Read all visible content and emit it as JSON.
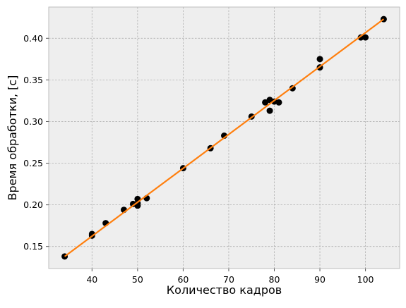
{
  "chart_data": {
    "type": "scatter",
    "title": "",
    "xlabel": "Количество кадров",
    "ylabel": "Время обработки, [с]",
    "xlim": [
      30.5,
      107.5
    ],
    "ylim": [
      0.1235,
      0.4375
    ],
    "xticks": [
      40,
      50,
      60,
      70,
      80,
      90,
      100
    ],
    "yticks": [
      0.15,
      0.2,
      0.25,
      0.3,
      0.35,
      0.4
    ],
    "grid": true,
    "legend": "none",
    "series": [
      {
        "type": "scatter",
        "color": "#000000",
        "x": [
          34,
          40,
          40,
          43,
          47,
          49,
          50,
          50,
          50,
          52,
          60,
          66,
          69,
          75,
          78,
          79,
          79,
          80,
          81,
          84,
          90,
          90,
          99,
          100,
          104
        ],
        "y": [
          0.138,
          0.165,
          0.163,
          0.178,
          0.194,
          0.201,
          0.207,
          0.202,
          0.199,
          0.208,
          0.244,
          0.268,
          0.283,
          0.306,
          0.323,
          0.326,
          0.313,
          0.324,
          0.323,
          0.34,
          0.375,
          0.365,
          0.401,
          0.401,
          0.423
        ]
      },
      {
        "type": "line",
        "color": "#ff7f0e",
        "x": [
          34,
          104
        ],
        "y": [
          0.138,
          0.423
        ]
      }
    ],
    "colors": {
      "axes_background": "#eeeeee",
      "grid": "#b0b0b0",
      "spine": "#bcbcbc"
    }
  }
}
